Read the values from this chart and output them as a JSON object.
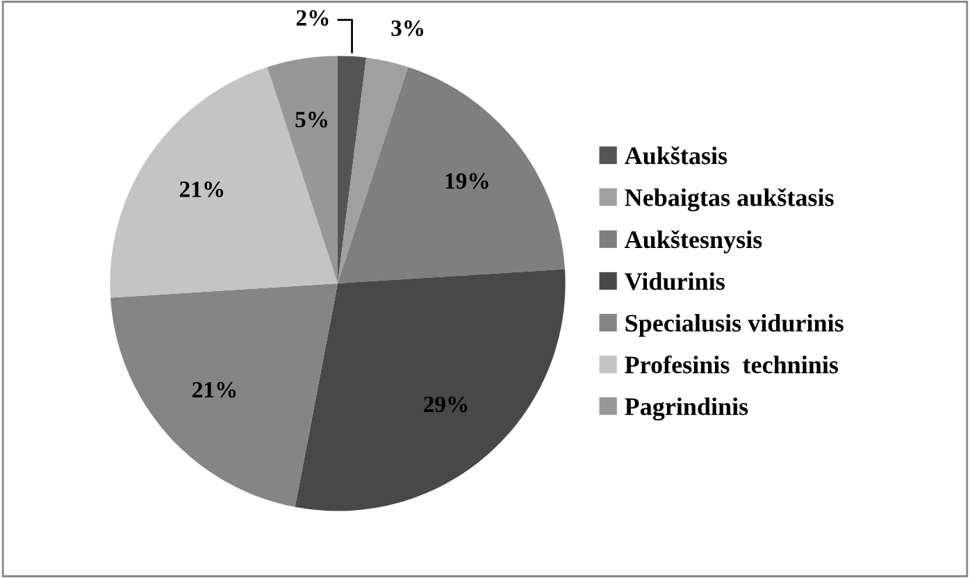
{
  "chart_data": {
    "type": "pie",
    "categories": [
      "Aukštasis",
      "Nebaigtas aukštasis",
      "Aukštesnysis",
      "Vidurinis",
      "Specialusis vidurinis",
      "Profesinis  techninis",
      "Pagrindinis"
    ],
    "values": [
      2,
      3,
      19,
      29,
      21,
      21,
      5
    ],
    "colors": [
      "#555555",
      "#a0a0a0",
      "#7f7f7f",
      "#484848",
      "#858585",
      "#c4c4c4",
      "#979797"
    ],
    "value_labels": [
      "2%",
      "3%",
      "19%",
      "29%",
      "21%",
      "21%",
      "5%"
    ],
    "legend": "right"
  }
}
